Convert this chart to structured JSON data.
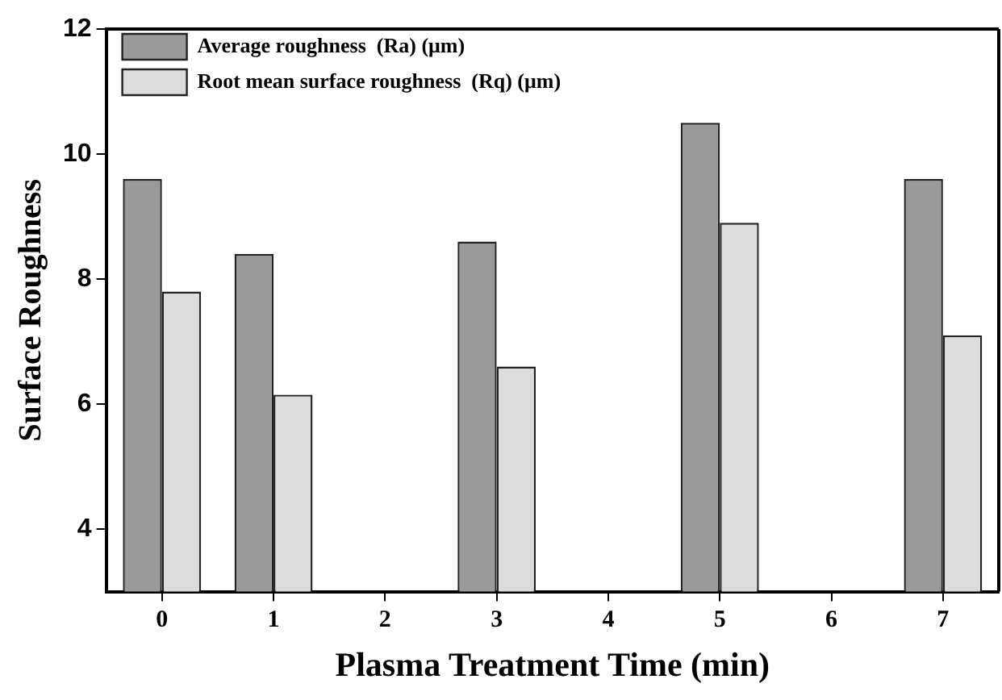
{
  "chart_data": {
    "type": "bar",
    "xlabel": "Plasma Treatment Time (min)",
    "ylabel": "Surface Roughness",
    "categories": [
      "0",
      "1",
      "2",
      "3",
      "4",
      "5",
      "6",
      "7"
    ],
    "series": [
      {
        "name": "Average roughness  (Ra) (μm)",
        "color": "#9a9a9a",
        "values": [
          9.6,
          8.4,
          null,
          8.6,
          null,
          10.5,
          null,
          9.6
        ]
      },
      {
        "name": "Root mean surface roughness  (Rq) (μm)",
        "color": "#dcdcdc",
        "values": [
          7.8,
          6.15,
          null,
          6.6,
          null,
          8.9,
          null,
          7.1
        ]
      }
    ],
    "ylim": [
      3,
      12
    ],
    "yticks": [
      4,
      6,
      8,
      10,
      12
    ],
    "grid": false,
    "legend": "top left"
  }
}
